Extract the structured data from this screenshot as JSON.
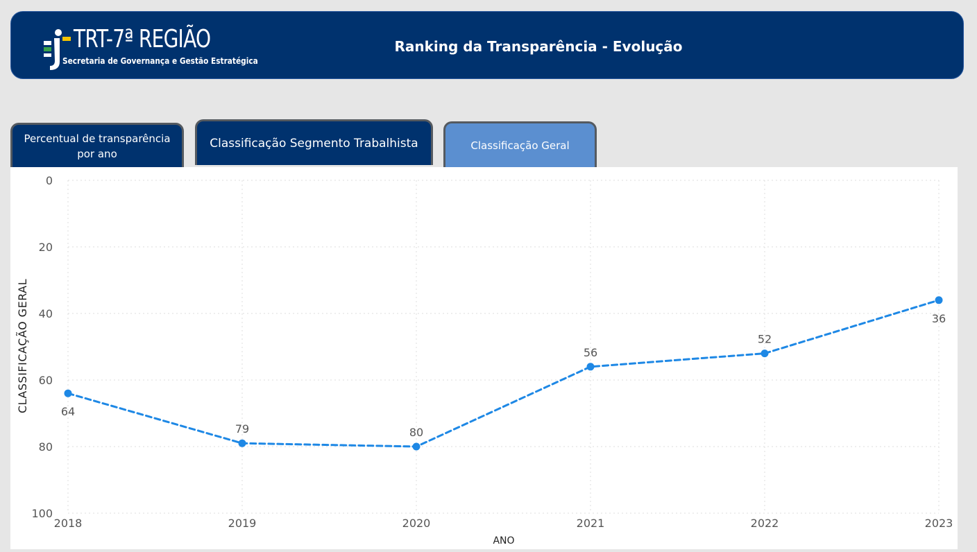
{
  "header": {
    "logo_title": "TRT-7ª REGIÃO",
    "logo_subtitle": "Secretaria de Governança e Gestão Estratégica",
    "title": "Ranking da Transparência - Evolução"
  },
  "tabs": [
    {
      "label": "Percentual de transparência por ano",
      "active": false
    },
    {
      "label": "Classificação Segmento Trabalhista",
      "active": false
    },
    {
      "label": "Classificação Geral",
      "active": true
    }
  ],
  "colors": {
    "header_bg": "#00326e",
    "tab_active": "#5b8fd0",
    "series_line": "#1e88e5",
    "logo_green": "#3aa44a",
    "logo_yellow": "#f5c400"
  },
  "icons": {
    "logo": "trt-person-logo-icon"
  },
  "chart_data": {
    "type": "line",
    "title": "",
    "xlabel": "ANO",
    "ylabel": "CLASSIFICAÇÃO GERAL",
    "categories": [
      "2018",
      "2019",
      "2020",
      "2021",
      "2022",
      "2023"
    ],
    "series": [
      {
        "values": [
          64,
          79,
          80,
          56,
          52,
          36
        ]
      }
    ],
    "data_labels": [
      "64",
      "79",
      "80",
      "56",
      "52",
      "36"
    ],
    "y_ticks": [
      "0",
      "20",
      "40",
      "60",
      "80",
      "100"
    ],
    "ylim": [
      0,
      100
    ],
    "y_axis_reversed": true,
    "line_style": "dashed",
    "grid": true
  }
}
